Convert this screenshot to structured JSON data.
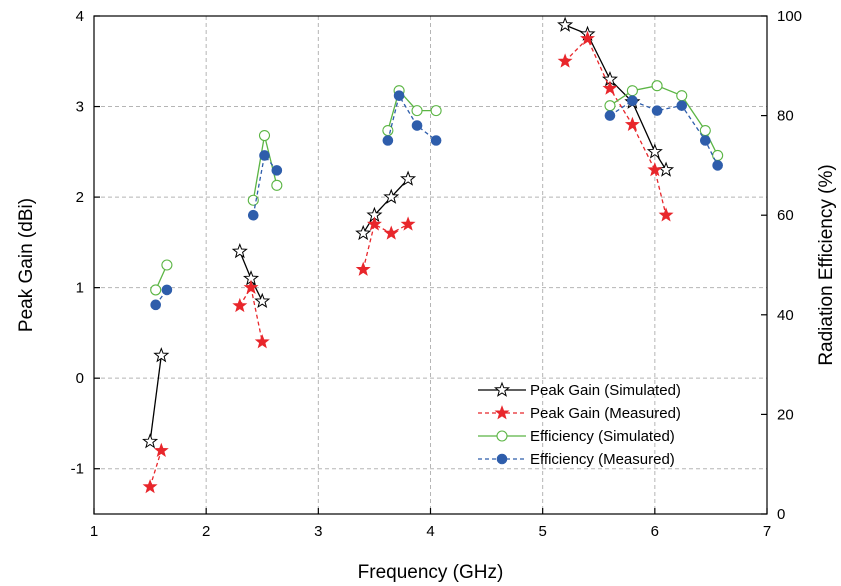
{
  "chart_data": {
    "type": "line",
    "title": "",
    "xlabel": "Frequency (GHz)",
    "ylabel": "Peak Gain (dBi)",
    "y2label": "Radiation Efficiency (%)",
    "xlim": [
      1,
      7
    ],
    "ylim": [
      -1.5,
      4
    ],
    "y2lim": [
      0,
      100
    ],
    "x_ticks": [
      "1",
      "2",
      "3",
      "4",
      "5",
      "6",
      "7"
    ],
    "y_ticks": [
      "-1",
      "0",
      "1",
      "2",
      "3",
      "4"
    ],
    "y2_ticks": [
      "0",
      "20",
      "40",
      "60",
      "80",
      "100"
    ],
    "grid": true,
    "legend_position": "bottom-right",
    "colors": {
      "sim_gain": "#000000",
      "meas_gain": "#e8262b",
      "sim_eff": "#5bb544",
      "meas_eff": "#2e5dab"
    },
    "series": [
      {
        "name": "Peak Gain (Simulated)",
        "axis": "left",
        "marker": "open-star",
        "line": "solid",
        "segments": [
          [
            [
              1.5,
              -0.7
            ],
            [
              1.6,
              0.25
            ]
          ],
          [
            [
              2.3,
              1.4
            ],
            [
              2.4,
              1.1
            ],
            [
              2.5,
              0.85
            ]
          ],
          [
            [
              3.4,
              1.6
            ],
            [
              3.5,
              1.8
            ],
            [
              3.65,
              2.0
            ],
            [
              3.8,
              2.2
            ]
          ],
          [
            [
              5.2,
              3.9
            ],
            [
              5.4,
              3.8
            ],
            [
              5.6,
              3.3
            ],
            [
              5.8,
              3.05
            ],
            [
              6.0,
              2.5
            ],
            [
              6.1,
              2.3
            ]
          ]
        ]
      },
      {
        "name": "Peak Gain (Measured)",
        "axis": "left",
        "marker": "filled-star",
        "line": "dashed",
        "segments": [
          [
            [
              1.5,
              -1.2
            ],
            [
              1.6,
              -0.8
            ]
          ],
          [
            [
              2.3,
              0.8
            ],
            [
              2.4,
              1.0
            ],
            [
              2.5,
              0.4
            ]
          ],
          [
            [
              3.4,
              1.2
            ],
            [
              3.5,
              1.7
            ],
            [
              3.65,
              1.6
            ],
            [
              3.8,
              1.7
            ]
          ],
          [
            [
              5.2,
              3.5
            ],
            [
              5.4,
              3.75
            ],
            [
              5.6,
              3.2
            ],
            [
              5.8,
              2.8
            ],
            [
              6.0,
              2.3
            ],
            [
              6.1,
              1.8
            ]
          ]
        ]
      },
      {
        "name": "Efficiency   (Simulated)",
        "axis": "right",
        "marker": "open-circle",
        "line": "solid",
        "segments": [
          [
            [
              1.55,
              45
            ],
            [
              1.65,
              50
            ]
          ],
          [
            [
              2.42,
              63
            ],
            [
              2.52,
              76
            ],
            [
              2.63,
              66
            ]
          ],
          [
            [
              3.62,
              77
            ],
            [
              3.72,
              85
            ],
            [
              3.88,
              81
            ],
            [
              4.05,
              81
            ]
          ],
          [
            [
              5.6,
              82
            ],
            [
              5.8,
              85
            ],
            [
              6.02,
              86
            ],
            [
              6.24,
              84
            ],
            [
              6.45,
              77
            ],
            [
              6.56,
              72
            ]
          ]
        ]
      },
      {
        "name": "Efficiency   (Measured)",
        "axis": "right",
        "marker": "filled-circle",
        "line": "dashed",
        "segments": [
          [
            [
              1.55,
              42
            ],
            [
              1.65,
              45
            ]
          ],
          [
            [
              2.42,
              60
            ],
            [
              2.52,
              72
            ],
            [
              2.63,
              69
            ]
          ],
          [
            [
              3.62,
              75
            ],
            [
              3.72,
              84
            ],
            [
              3.88,
              78
            ],
            [
              4.05,
              75
            ]
          ],
          [
            [
              5.6,
              80
            ],
            [
              5.8,
              83
            ],
            [
              6.02,
              81
            ],
            [
              6.24,
              82
            ],
            [
              6.45,
              75
            ],
            [
              6.56,
              70
            ]
          ]
        ]
      }
    ]
  }
}
